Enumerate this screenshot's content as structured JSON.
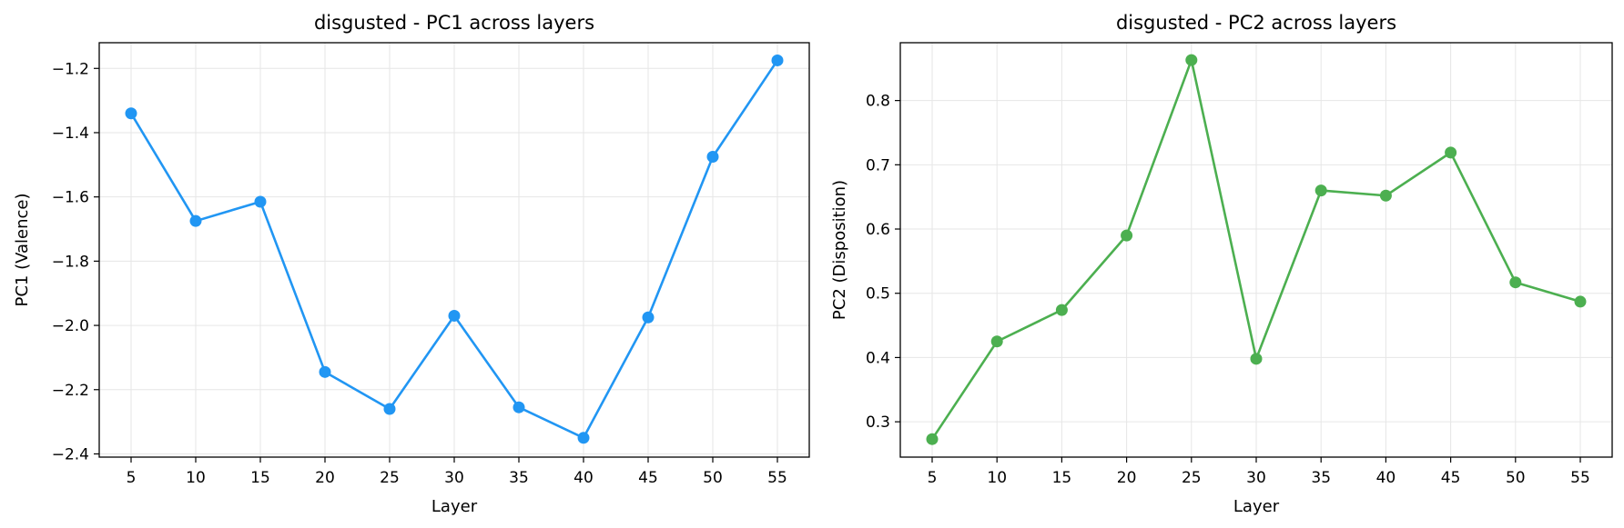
{
  "chart_data": [
    {
      "type": "line",
      "title": "disgusted - PC1 across layers",
      "xlabel": "Layer",
      "ylabel": "PC1 (Valence)",
      "x": [
        5,
        10,
        15,
        20,
        25,
        30,
        35,
        40,
        45,
        50,
        55
      ],
      "xticks": [
        "5",
        "10",
        "15",
        "20",
        "25",
        "30",
        "35",
        "40",
        "45",
        "50",
        "55"
      ],
      "yticks": [
        "−1.2",
        "−1.4",
        "−1.6",
        "−1.8",
        "−2.0",
        "−2.2",
        "−2.4"
      ],
      "ylim": [
        -2.41,
        -1.12
      ],
      "grid": true,
      "series": [
        {
          "color": "#2196F3",
          "values": [
            -1.34,
            -1.675,
            -1.615,
            -2.145,
            -2.26,
            -1.97,
            -2.255,
            -2.35,
            -1.975,
            -1.475,
            -1.175
          ]
        }
      ]
    },
    {
      "type": "line",
      "title": "disgusted - PC2 across layers",
      "xlabel": "Layer",
      "ylabel": "PC2 (Disposition)",
      "x": [
        5,
        10,
        15,
        20,
        25,
        30,
        35,
        40,
        45,
        50,
        55
      ],
      "xticks": [
        "5",
        "10",
        "15",
        "20",
        "25",
        "30",
        "35",
        "40",
        "45",
        "50",
        "55"
      ],
      "yticks": [
        "0.3",
        "0.4",
        "0.5",
        "0.6",
        "0.7",
        "0.8"
      ],
      "ylim": [
        0.245,
        0.89
      ],
      "grid": true,
      "series": [
        {
          "color": "#4CAF50",
          "values": [
            0.273,
            0.425,
            0.474,
            0.59,
            0.863,
            0.398,
            0.66,
            0.652,
            0.719,
            0.517,
            0.487
          ]
        }
      ]
    }
  ]
}
